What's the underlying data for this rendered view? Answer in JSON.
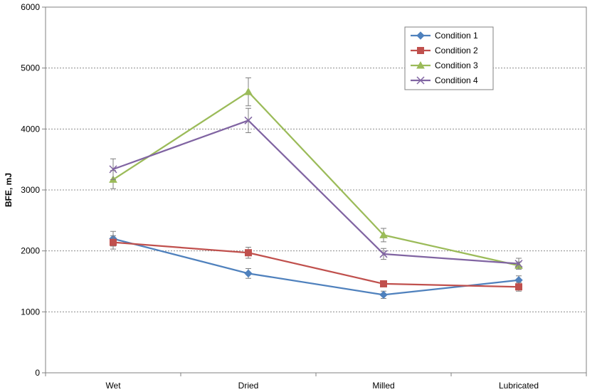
{
  "chart_data": {
    "type": "line",
    "title": "",
    "xlabel": "",
    "ylabel": "BFE, mJ",
    "categories": [
      "Wet",
      "Dried",
      "Milled",
      "Lubricated"
    ],
    "ylim": [
      0,
      6000
    ],
    "yticks": [
      0,
      1000,
      2000,
      3000,
      4000,
      5000,
      6000
    ],
    "grid": true,
    "legend_position": "top-right",
    "series": [
      {
        "name": "Condition 1",
        "color": "#4F81BD",
        "marker": "diamond",
        "values": [
          2200,
          1630,
          1280,
          1520
        ],
        "errors": [
          120,
          80,
          60,
          70
        ]
      },
      {
        "name": "Condition 2",
        "color": "#C0504D",
        "marker": "square",
        "values": [
          2140,
          1970,
          1460,
          1410
        ],
        "errors": [
          110,
          90,
          50,
          70
        ]
      },
      {
        "name": "Condition 3",
        "color": "#9BBB59",
        "marker": "triangle",
        "values": [
          3170,
          4610,
          2260,
          1760
        ],
        "errors": [
          150,
          230,
          110,
          60
        ]
      },
      {
        "name": "Condition 4",
        "color": "#8064A2",
        "marker": "x",
        "values": [
          3340,
          4140,
          1950,
          1790
        ],
        "errors": [
          170,
          200,
          90,
          90
        ]
      }
    ]
  }
}
